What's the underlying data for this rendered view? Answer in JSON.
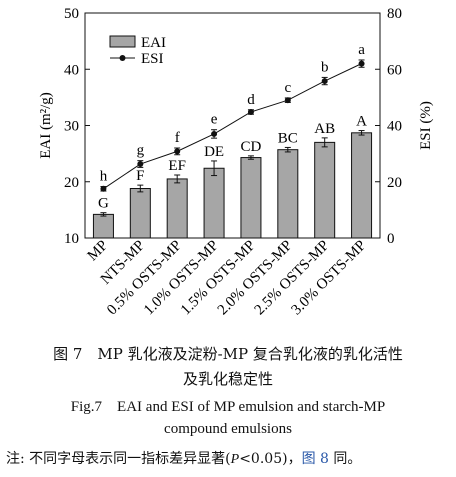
{
  "chart_data": {
    "type": "bar",
    "categories": [
      "MP",
      "NTS-MP",
      "0.5% OSTS-MP",
      "1.0% OSTS-MP",
      "1.5% OSTS-MP",
      "2.0% OSTS-MP",
      "2.5% OSTS-MP",
      "3.0% OSTS-MP"
    ],
    "series": [
      {
        "name": "EAI",
        "type": "bar",
        "axis": "left",
        "values": [
          14.2,
          18.8,
          20.5,
          22.4,
          24.3,
          25.7,
          27.0,
          28.7
        ],
        "errors": [
          0.3,
          0.6,
          0.7,
          1.3,
          0.3,
          0.4,
          0.8,
          0.4
        ],
        "letters": [
          "G",
          "F",
          "EF",
          "DE",
          "CD",
          "BC",
          "AB",
          "A"
        ],
        "color": "#a6a6a6"
      },
      {
        "name": "ESI",
        "type": "line",
        "axis": "right",
        "values": [
          17.5,
          26.3,
          30.8,
          37.0,
          44.8,
          49.0,
          55.8,
          62.0
        ],
        "errors": [
          0.8,
          1.2,
          1.2,
          1.5,
          0.8,
          0.8,
          1.3,
          1.3
        ],
        "letters": [
          "h",
          "g",
          "f",
          "e",
          "d",
          "c",
          "b",
          "a"
        ],
        "color": "#111111"
      }
    ],
    "ylabel_left": "EAI (m²/g)",
    "ylabel_right": "ESI (%)",
    "ylim_left": [
      10,
      50
    ],
    "ylim_right": [
      0,
      80
    ],
    "yticks_left": [
      10,
      20,
      30,
      40,
      50
    ],
    "yticks_right": [
      0,
      20,
      40,
      60,
      80
    ],
    "legend": [
      "EAI",
      "ESI"
    ],
    "legend_position": "top-left",
    "grid": false
  },
  "caption": {
    "cn_line1": "图 7　MP 乳化液及淀粉-MP 复合乳化液的乳化活性",
    "cn_line2": "及乳化稳定性",
    "en_line1": "Fig.7　EAI and ESI of MP emulsion and starch-MP",
    "en_line2": "compound emulsions"
  },
  "note": {
    "prefix": "注: 不同字母表示同一指标差异显著(",
    "p_symbol": "P",
    "p_value": "<0.05)，",
    "ref": "图 8",
    "suffix": " 同。"
  },
  "colors": {
    "bar_fill": "#a6a6a6",
    "line": "#111111",
    "ref_link": "#2a58a8"
  }
}
